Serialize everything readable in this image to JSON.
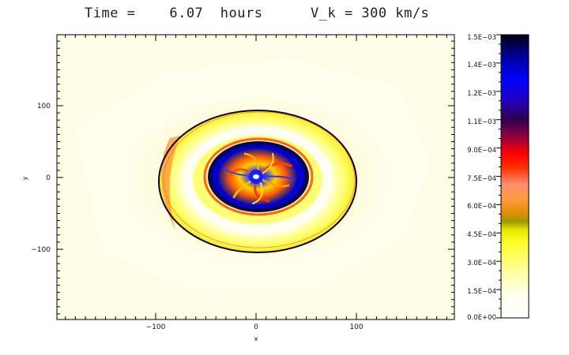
{
  "header": {
    "time_text": "Time =    6.07  hours",
    "velocity_text": "V_k = 300 km/s"
  },
  "plot": {
    "xlabel": "x",
    "ylabel": "y",
    "x_ticks": [
      "−100",
      "0",
      "100"
    ],
    "y_ticks": [
      "100",
      "0",
      "−100"
    ],
    "background_color": "#fefde8"
  },
  "colorbar": {
    "labels": [
      "1.5E−03",
      "1.4E−03",
      "1.2E−03",
      "1.1E−03",
      "9.0E−04",
      "7.5E−04",
      "6.0E−04",
      "4.5E−04",
      "3.0E−04",
      "1.5E−04",
      "0.0E+00"
    ],
    "colors": [
      "#ffffff",
      "#fffff0",
      "#ffff80",
      "#ffff30",
      "#f0f000",
      "#9a9a00",
      "#ffa020",
      "#ff9070",
      "#ff3000",
      "#ff0000",
      "#a00030",
      "#300050",
      "#2000c0",
      "#0000ff",
      "#0000a0",
      "#000020"
    ]
  }
}
